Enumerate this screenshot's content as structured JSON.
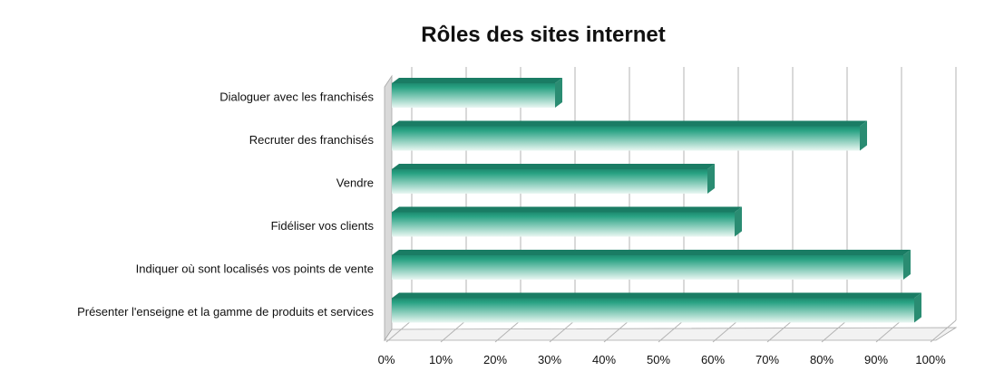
{
  "chart_data": {
    "type": "bar",
    "orientation": "horizontal",
    "title": "Rôles des sites internet",
    "categories": [
      "Dialoguer avec les franchisés",
      "Recruter des franchisés",
      "Vendre",
      "Fidéliser vos clients",
      "Indiquer où sont localisés vos points de vente",
      "Présenter l'enseigne et la gamme de produits et services"
    ],
    "values": [
      30,
      86,
      58,
      63,
      94,
      96
    ],
    "xlim": [
      0,
      100
    ],
    "x_ticks": [
      "0%",
      "10%",
      "20%",
      "30%",
      "40%",
      "50%",
      "60%",
      "70%",
      "80%",
      "90%",
      "100%"
    ],
    "grid": true,
    "legend": "none",
    "style": "3d",
    "colors": {
      "bar_top": "#1e8a70",
      "bar_bottom": "#e9f7f2",
      "bar_end": "#2a8c72",
      "grid": "#b3b3b3",
      "wall": "#d9d9d9"
    }
  }
}
